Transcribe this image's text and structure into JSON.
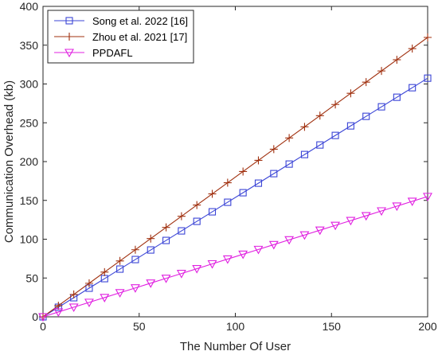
{
  "chart_data": {
    "type": "line",
    "xlabel": "The Number Of User",
    "ylabel": "Communication  Overhead (kb)",
    "xlim": [
      0,
      200
    ],
    "ylim": [
      0,
      400
    ],
    "xticks": [
      0,
      50,
      100,
      150,
      200
    ],
    "yticks": [
      0,
      50,
      100,
      150,
      200,
      250,
      300,
      350,
      400
    ],
    "grid": false,
    "legend_position": "top-left",
    "x": [
      0,
      8,
      16,
      24,
      32,
      40,
      48,
      56,
      64,
      72,
      80,
      88,
      96,
      104,
      112,
      120,
      128,
      136,
      144,
      152,
      160,
      168,
      176,
      184,
      192,
      200
    ],
    "series": [
      {
        "name": "Song et al. 2022 [16]",
        "color": "#3b45d6",
        "marker": "square",
        "values": [
          0,
          12.3,
          24.6,
          36.9,
          49.2,
          61.5,
          73.8,
          86.1,
          98.4,
          110.7,
          123.0,
          135.3,
          147.6,
          159.9,
          172.2,
          184.5,
          196.8,
          209.1,
          221.4,
          233.7,
          246.0,
          258.3,
          270.6,
          282.9,
          295.2,
          307.5
        ]
      },
      {
        "name": "Zhou et al. 2021 [17]",
        "color": "#a0300f",
        "marker": "plus",
        "values": [
          0,
          14.4,
          28.8,
          43.2,
          57.6,
          72.0,
          86.4,
          100.8,
          115.2,
          129.6,
          144.0,
          158.4,
          172.8,
          187.2,
          201.6,
          216.0,
          230.4,
          244.8,
          259.2,
          273.6,
          288.0,
          302.4,
          316.8,
          331.2,
          345.6,
          360.0
        ]
      },
      {
        "name": "PPDAFL",
        "color": "#e020e0",
        "marker": "triangle-down",
        "values": [
          0,
          6.2,
          12.4,
          18.6,
          24.8,
          31.0,
          37.2,
          43.4,
          49.6,
          55.8,
          62.0,
          68.2,
          74.4,
          80.6,
          86.8,
          93.0,
          99.2,
          105.4,
          111.6,
          117.8,
          124.0,
          130.2,
          136.4,
          142.6,
          148.8,
          155.0
        ]
      }
    ]
  }
}
